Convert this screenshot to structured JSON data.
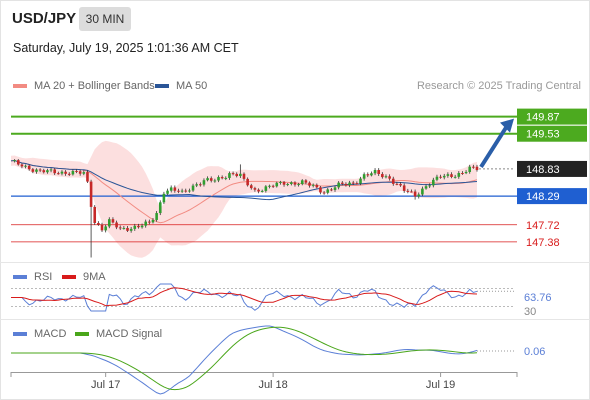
{
  "header": {
    "symbol": "USD/JPY",
    "timeframe": "30 MIN",
    "datetime": "Saturday, July 19, 2025 1:01:36 AM CET",
    "credit": "Research © 2025 Trading Central"
  },
  "legend": {
    "ma20_bb": {
      "label": "MA 20 + Bollinger Bands",
      "color": "#f28b82"
    },
    "ma50": {
      "label": "MA 50",
      "color": "#2a5597"
    },
    "rsi": {
      "label": "RSI",
      "color": "#5b7fd6"
    },
    "rsi_ma": {
      "label": "9MA",
      "color": "#d81b1b"
    },
    "macd": {
      "label": "MACD",
      "color": "#5b7fd6"
    },
    "macd_signal": {
      "label": "MACD Signal",
      "color": "#4aa61a"
    }
  },
  "colors": {
    "resistance": "#4caa1f",
    "support": "#d81b1b",
    "pivot": "#1f5fd1",
    "current": "#222222",
    "arrow": "#2a5ea8",
    "candle_up": "#2f9e2f",
    "candle_down": "#c62828",
    "bb_fill": "#fbd4d4"
  },
  "chart_data": [
    {
      "type": "candlestick",
      "panel": "price",
      "x_ticks": [
        "Jul 17",
        "Jul 18",
        "Jul 19"
      ],
      "x_index_range": [
        0,
        128
      ],
      "x_tick_index": [
        26,
        72,
        118
      ],
      "ylim": [
        147.02,
        150.2
      ],
      "levels": {
        "resistance": [
          149.87,
          149.53
        ],
        "pivot": 148.29,
        "support": [
          147.72,
          147.38
        ],
        "current": 148.83
      },
      "target_arrow": {
        "from": 148.83,
        "to": 149.87
      },
      "key_points": [
        [
          0,
          148.97
        ],
        [
          8,
          148.78
        ],
        [
          16,
          148.76
        ],
        [
          20,
          148.74
        ],
        [
          21,
          148.55
        ],
        [
          22,
          148.12
        ],
        [
          23,
          147.79
        ],
        [
          25,
          147.63
        ],
        [
          27,
          147.78
        ],
        [
          30,
          147.64
        ],
        [
          35,
          147.68
        ],
        [
          38,
          147.75
        ],
        [
          40,
          147.95
        ],
        [
          42,
          148.39
        ],
        [
          44,
          148.42
        ],
        [
          47,
          148.35
        ],
        [
          50,
          148.5
        ],
        [
          53,
          148.59
        ],
        [
          56,
          148.6
        ],
        [
          60,
          148.74
        ],
        [
          63,
          148.7
        ],
        [
          64,
          148.58
        ],
        [
          67,
          148.4
        ],
        [
          70,
          148.46
        ],
        [
          75,
          148.55
        ],
        [
          80,
          148.56
        ],
        [
          83,
          148.48
        ],
        [
          86,
          148.38
        ],
        [
          90,
          148.5
        ],
        [
          94,
          148.55
        ],
        [
          97,
          148.7
        ],
        [
          100,
          148.75
        ],
        [
          104,
          148.65
        ],
        [
          108,
          148.4
        ],
        [
          111,
          148.3
        ],
        [
          114,
          148.5
        ],
        [
          118,
          148.67
        ],
        [
          122,
          148.72
        ],
        [
          124,
          148.75
        ],
        [
          126,
          148.83
        ]
      ]
    },
    {
      "type": "line",
      "panel": "rsi",
      "series": [
        {
          "name": "RSI",
          "current": 63.76
        },
        {
          "name": "9MA",
          "current": null
        }
      ],
      "reference_levels": [
        70,
        30
      ],
      "y_tick_labels": [
        "63.76",
        "30"
      ]
    },
    {
      "type": "line",
      "panel": "macd",
      "series": [
        {
          "name": "MACD",
          "current": 0.06
        },
        {
          "name": "MACD Signal",
          "current": null
        }
      ],
      "y_tick_labels": [
        "0.06"
      ]
    }
  ],
  "price_labels": {
    "r2": "149.87",
    "r1": "149.53",
    "current": "148.83",
    "pivot": "148.29",
    "s1": "147.72",
    "s2": "147.38"
  },
  "indicator_labels": {
    "rsi_value": "63.76",
    "rsi_low": "30",
    "macd_value": "0.06"
  }
}
